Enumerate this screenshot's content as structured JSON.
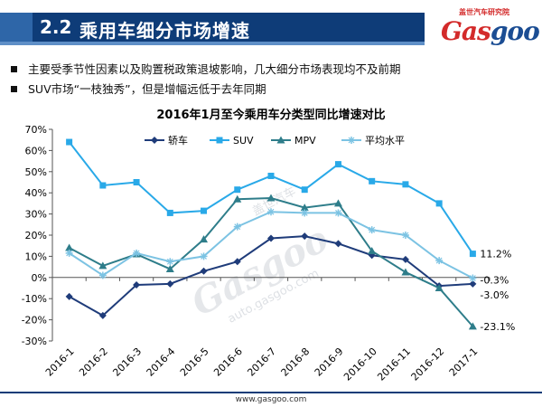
{
  "header": {
    "section_no": "2.2",
    "title": "乘用车细分市场增速",
    "logo_small": "盖世汽车研究院",
    "logo_main_a": "Gas",
    "logo_main_b": "goo"
  },
  "bullets": [
    "主要受季节性因素以及购置税政策退坡影响，几大细分市场表现均不及前期",
    "SUV市场“一枝独秀”，但是增幅远低于去年同期"
  ],
  "footer_url": "www.gasgoo.com",
  "watermark": {
    "main": "Gasgoo",
    "sub": "auto.gasgoo.com",
    "brand": "盖世汽车"
  },
  "chart_data": {
    "type": "line",
    "title": "2016年1月至今乘用车分类型同比增速对比",
    "categories": [
      "2016-1",
      "2016-2",
      "2016-3",
      "2016-4",
      "2016-5",
      "2016-6",
      "2016-7",
      "2016-8",
      "2016-9",
      "2016-10",
      "2016-11",
      "2016-12",
      "2017-1"
    ],
    "y_ticks": [
      "70%",
      "60%",
      "50%",
      "40%",
      "30%",
      "20%",
      "10%",
      "0%",
      "-10%",
      "-20%",
      "-30%"
    ],
    "ylim": [
      -30,
      70
    ],
    "y_unit": "%",
    "grid": false,
    "legend_position": "top",
    "series": [
      {
        "name": "轿车",
        "color": "#1f3c7a",
        "marker": "diamond",
        "values": [
          -9,
          -18,
          -3.5,
          -3,
          3,
          7.5,
          18.5,
          19.5,
          16,
          10.5,
          8.5,
          -4,
          -3
        ]
      },
      {
        "name": "SUV",
        "color": "#29a9e8",
        "marker": "square",
        "values": [
          64,
          43.5,
          45,
          30.5,
          31.5,
          41.5,
          48,
          41.5,
          53.5,
          45.5,
          44,
          35,
          11.2
        ]
      },
      {
        "name": "MPV",
        "color": "#2e7d8a",
        "marker": "triangle",
        "values": [
          14,
          5.5,
          11,
          4,
          18,
          37,
          37.5,
          33,
          35,
          12.5,
          2.5,
          -5,
          -23.1
        ]
      },
      {
        "name": "平均水平",
        "color": "#7cc3e3",
        "marker": "star",
        "values": [
          11.5,
          1,
          11.5,
          7.5,
          10,
          24,
          31,
          30.5,
          30.5,
          22.5,
          20,
          8,
          -0.3
        ]
      }
    ],
    "end_labels": [
      "11.2%",
      "-0.3%",
      "-3.0%",
      "-23.1%"
    ]
  }
}
